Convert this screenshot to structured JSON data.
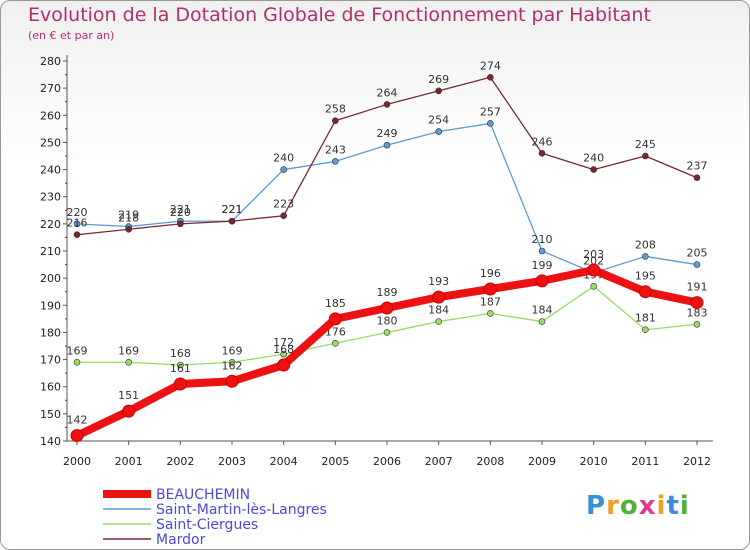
{
  "chart_data": {
    "type": "line",
    "title": "Evolution de la Dotation Globale de Fonctionnement par Habitant",
    "subtitle": "(en € et par an)",
    "x": [
      "2000",
      "2001",
      "2002",
      "2003",
      "2004",
      "2005",
      "2006",
      "2007",
      "2008",
      "2009",
      "2010",
      "2011",
      "2012"
    ],
    "yticks": [
      "140",
      "150",
      "160",
      "170",
      "180",
      "190",
      "200",
      "210",
      "220",
      "230",
      "240",
      "250",
      "260",
      "270",
      "280"
    ],
    "ylim": [
      140,
      280
    ],
    "grid": false,
    "series": [
      {
        "name": "Saint-Ciergues",
        "color": "#99dd66",
        "values": [
          169,
          169,
          168,
          169,
          172,
          176,
          180,
          184,
          187,
          184,
          197,
          181,
          183
        ],
        "labels": [
          "169",
          "169",
          "168",
          "169",
          "172",
          "176",
          "180",
          "184",
          "187",
          "184",
          "197",
          "181",
          "183"
        ]
      },
      {
        "name": "Saint-Martin-lès-Langres",
        "color": "#5c9bd4",
        "values": [
          220,
          219,
          221,
          221,
          240,
          243,
          249,
          254,
          257,
          210,
          202,
          208,
          205
        ],
        "labels": [
          "220",
          "219",
          "221",
          "221",
          "240",
          "243",
          "249",
          "254",
          "257",
          "210",
          "202",
          "208",
          "205"
        ]
      },
      {
        "name": "Mardor",
        "color": "#7a2830",
        "values": [
          216,
          218,
          220,
          221,
          223,
          258,
          264,
          269,
          274,
          246,
          240,
          245,
          237
        ],
        "labels": [
          "216",
          "218",
          "220",
          "221",
          "223",
          "258",
          "264",
          "269",
          "274",
          "246",
          "240",
          "245",
          "237"
        ]
      },
      {
        "name": "BEAUCHEMIN",
        "color": "#ee1111",
        "values": [
          142,
          151,
          161,
          162,
          168,
          185,
          189,
          193,
          196,
          199,
          203,
          195,
          191
        ],
        "labels": [
          "142",
          "151",
          "161",
          "162",
          "168",
          "185",
          "189",
          "193",
          "196",
          "199",
          "203",
          "195",
          "191"
        ]
      }
    ],
    "legend": [
      {
        "name": "BEAUCHEMIN",
        "color": "#ee1111"
      },
      {
        "name": "Saint-Martin-lès-Langres",
        "color": "#5c9bd4"
      },
      {
        "name": "Saint-Ciergues",
        "color": "#99dd66"
      },
      {
        "name": "Mardor",
        "color": "#7a2830"
      }
    ],
    "legend_text_color": "#4a4adc",
    "legend_position": "bottom-left"
  },
  "logo": {
    "text": "Proxiti"
  }
}
